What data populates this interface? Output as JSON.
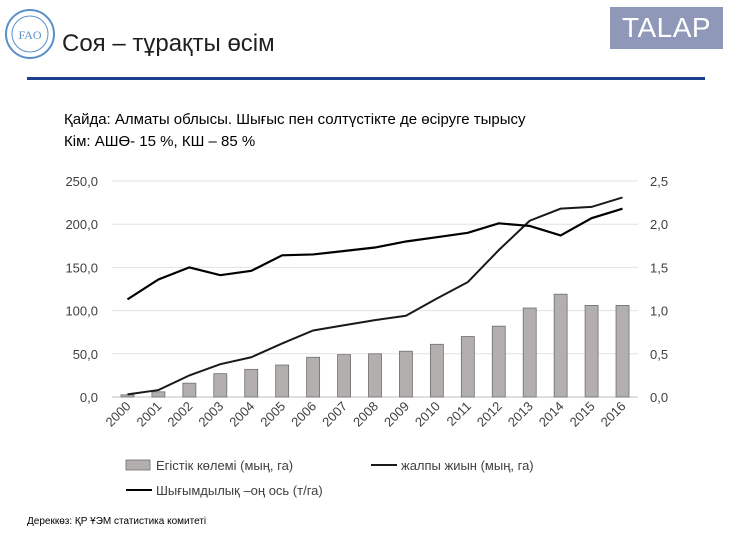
{
  "header": {
    "title": "Соя – тұрақты өсім",
    "badge": "TALAP",
    "logo_text": "FAO"
  },
  "subtitle": {
    "line1": "Қайда: Алматы облысы. Шығыс пен солтүстікте де өсіруге тырысу",
    "line2": "Кім: АШӨ- 15 %, КШ – 85 %"
  },
  "footer": {
    "source": "Дереккөз: ҚР ҰЭМ статистика комитеті"
  },
  "colors": {
    "brand_rule": "#1e3d8f",
    "badge_bg": "#8f98b8",
    "bar_fill": "#b3afaf",
    "line_harvest": "#1a1a1a",
    "line_yield": "#000000"
  },
  "chart_data": {
    "type": "bar",
    "categories": [
      "2000",
      "2001",
      "2002",
      "2003",
      "2004",
      "2005",
      "2006",
      "2007",
      "2008",
      "2009",
      "2010",
      "2011",
      "2012",
      "2013",
      "2014",
      "2015",
      "2016"
    ],
    "y_left": {
      "lim": [
        0,
        250
      ],
      "ticks": [
        "0,0",
        "50,0",
        "100,0",
        "150,0",
        "200,0",
        "250,0"
      ]
    },
    "y_right": {
      "lim": [
        0,
        2.5
      ],
      "ticks": [
        "0,0",
        "0,5",
        "1,0",
        "1,5",
        "2,0",
        "2,5"
      ]
    },
    "grid": true,
    "legend_position": "bottom",
    "series": [
      {
        "name": "Егістік көлемі (мың, га)",
        "type": "bar",
        "axis": "left",
        "values": [
          2.5,
          6,
          16,
          27,
          32,
          37,
          46,
          49,
          50,
          53,
          61,
          70,
          82,
          103,
          119,
          106,
          106
        ]
      },
      {
        "name": "жалпы жиын (мың, га)",
        "type": "line",
        "axis": "left",
        "values": [
          3,
          8,
          25,
          38,
          46,
          62,
          77,
          83,
          89,
          94,
          114,
          133,
          170,
          204,
          218,
          220,
          231
        ]
      },
      {
        "name": "Шығымдылық –оң ось (т/га)",
        "type": "line",
        "axis": "right",
        "values": [
          1.13,
          1.36,
          1.5,
          1.41,
          1.46,
          1.64,
          1.65,
          1.69,
          1.73,
          1.8,
          1.85,
          1.9,
          2.01,
          1.98,
          1.87,
          2.07,
          2.18
        ]
      }
    ]
  }
}
